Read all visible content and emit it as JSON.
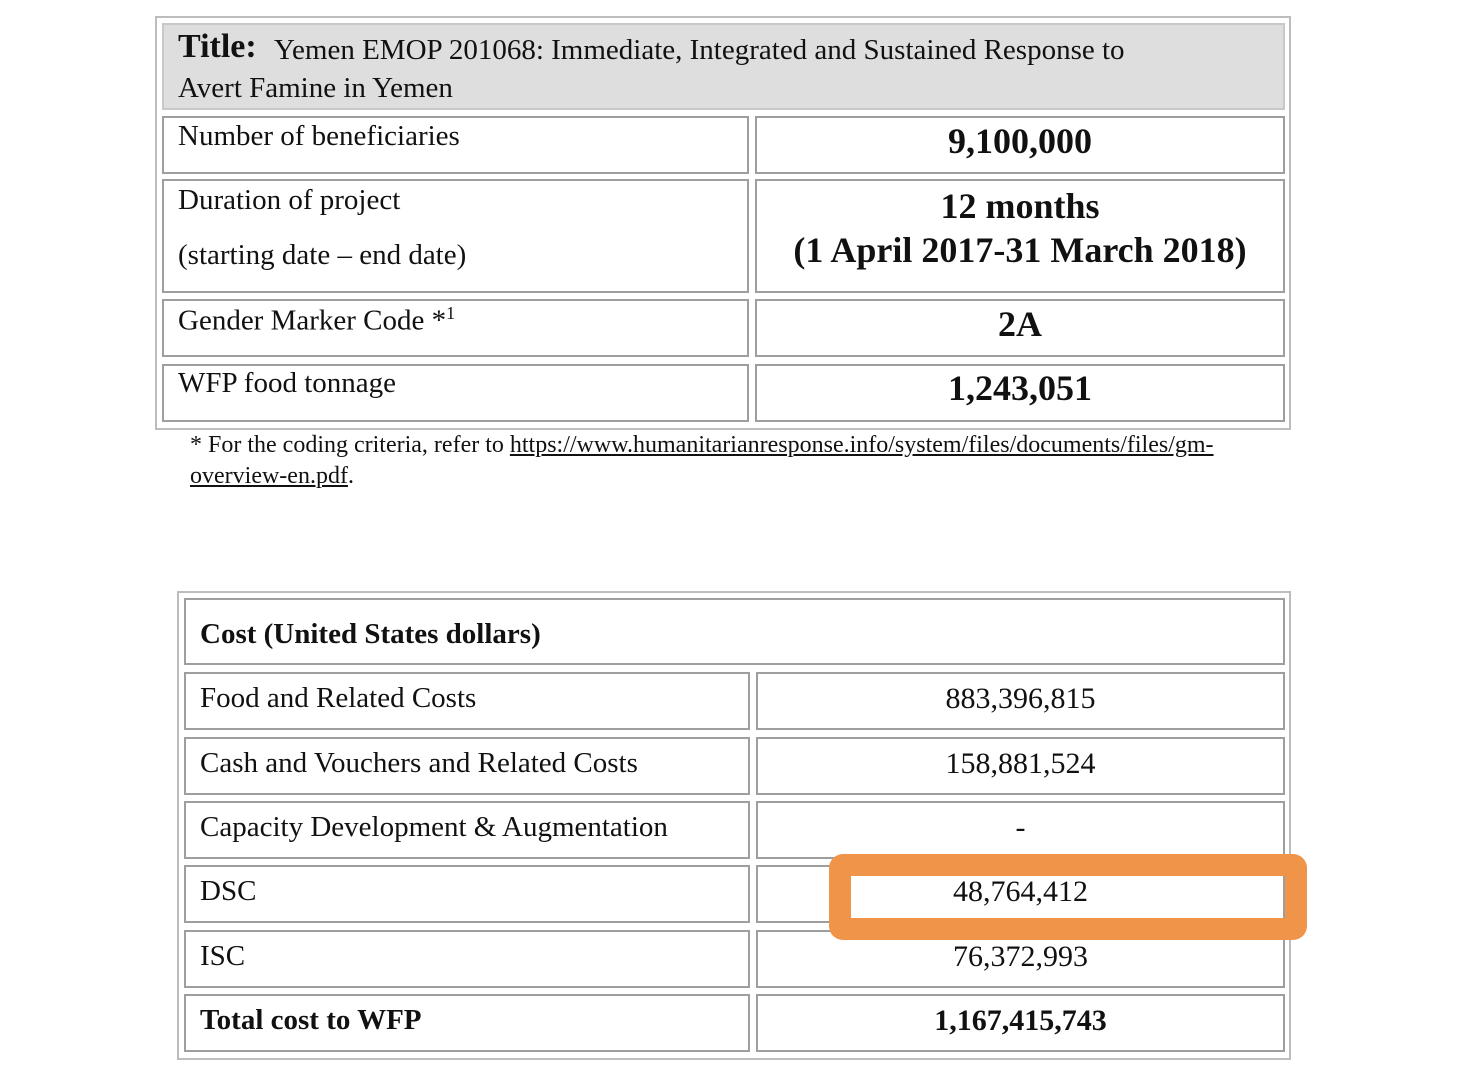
{
  "project_table": {
    "title_label": "Title:",
    "title_line1": "Yemen EMOP 201068: Immediate, Integrated and Sustained Response to",
    "title_line2": "Avert Famine in Yemen",
    "rows": [
      {
        "label": "Number of beneficiaries",
        "value": "9,100,000"
      },
      {
        "label_line1": "Duration of project",
        "label_line2": "(starting date – end date)",
        "value_line1": "12 months",
        "value_line2": "(1 April 2017-31 March 2018)"
      },
      {
        "label": "Gender Marker Code *",
        "label_sup": "1",
        "value": "2A"
      },
      {
        "label": "WFP food tonnage",
        "value": "1,243,051"
      }
    ]
  },
  "footnote": {
    "prefix": "* For the coding criteria, refer to ",
    "link_part1": "https://www.humanitarianresponse.info/system/files/documents/files/gm-",
    "link_part2": "overview-en.pdf",
    "suffix": "."
  },
  "cost_table": {
    "header": "Cost (United States dollars)",
    "rows": [
      {
        "label": "Food and Related Costs",
        "value": "883,396,815"
      },
      {
        "label": "Cash and Vouchers and Related Costs",
        "value": "158,881,524"
      },
      {
        "label": "Capacity Development & Augmentation",
        "value": "-"
      },
      {
        "label": "DSC",
        "value": "48,764,412"
      },
      {
        "label": "ISC",
        "value": "76,372,993"
      },
      {
        "label": "Total cost to WFP",
        "value": "1,167,415,743"
      }
    ]
  },
  "colors": {
    "highlight": "#f0944a",
    "title_background": "#dedede",
    "cell_border": "#9e9e9e"
  }
}
